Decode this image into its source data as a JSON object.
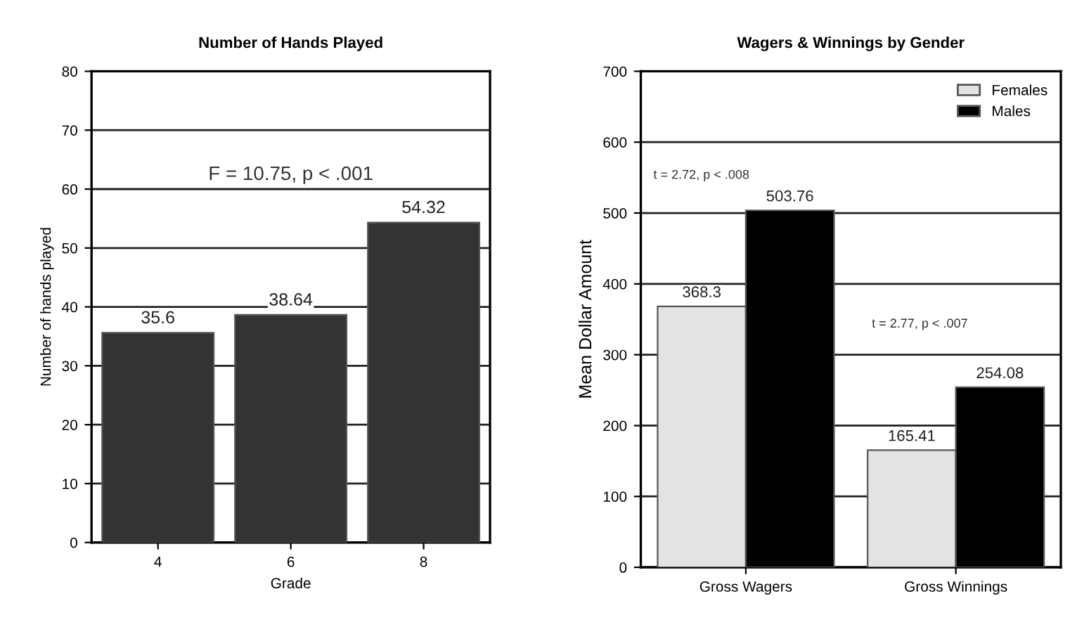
{
  "chart_data": [
    {
      "type": "bar",
      "title": "Number of Hands Played",
      "xlabel": "Grade",
      "ylabel": "Number of hands played",
      "categories": [
        "4",
        "6",
        "8"
      ],
      "values": [
        35.6,
        38.64,
        54.32
      ],
      "color": "#333333",
      "ylim": [
        0,
        80
      ],
      "yticks": [
        0,
        10,
        20,
        30,
        40,
        50,
        60,
        70,
        80
      ],
      "grid": "y",
      "data_labels": true,
      "annotations": [
        "F = 10.75, p < .001"
      ]
    },
    {
      "type": "bar",
      "title": "Wagers & Winnings by Gender",
      "ylabel": "Mean Dollar Amount",
      "categories": [
        "Gross Wagers",
        "Gross Winnings"
      ],
      "series": [
        {
          "name": "Females",
          "color": "#e3e3e3",
          "values": [
            368.3,
            165.41
          ]
        },
        {
          "name": "Males",
          "color": "#000000",
          "values": [
            503.76,
            254.08
          ]
        }
      ],
      "ylim": [
        0,
        700
      ],
      "yticks": [
        0,
        100,
        200,
        300,
        400,
        500,
        600,
        700
      ],
      "grid": "y",
      "legend": "top right",
      "data_labels": true,
      "annotations": [
        "t = 2.72, p < .008",
        "t = 2.77, p < .007"
      ]
    }
  ]
}
